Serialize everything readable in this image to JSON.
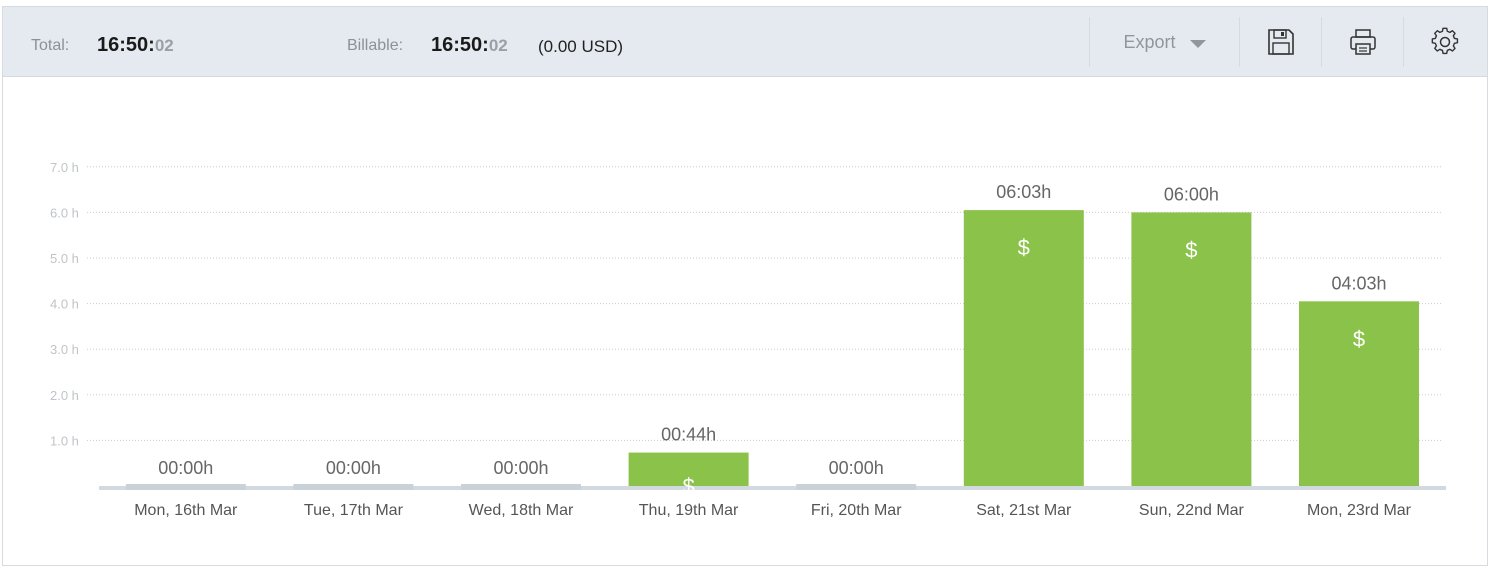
{
  "summary": {
    "total_label": "Total:",
    "total_hm": "16:50:",
    "total_sec": "02",
    "billable_label": "Billable:",
    "billable_hm": "16:50:",
    "billable_sec": "02",
    "billable_amount": "(0.00 USD)"
  },
  "toolbar": {
    "export_label": "Export",
    "icons": [
      "save-icon",
      "print-icon",
      "settings-icon"
    ]
  },
  "colors": {
    "bar_billable": "#8bc34a",
    "bar_zero": "#c9d2d8",
    "baseline": "#d3dadf",
    "grid": "#c8cdd2"
  },
  "chart_data": {
    "type": "bar",
    "categories": [
      "Mon, 16th Mar",
      "Tue, 17th Mar",
      "Wed, 18th Mar",
      "Thu, 19th Mar",
      "Fri, 20th Mar",
      "Sat, 21st Mar",
      "Sun, 22nd Mar",
      "Mon, 23rd Mar"
    ],
    "values": [
      0,
      0,
      0,
      0.733,
      0,
      6.05,
      6.0,
      4.05
    ],
    "value_labels": [
      "00:00h",
      "00:00h",
      "00:00h",
      "00:44h",
      "00:00h",
      "06:03h",
      "06:00h",
      "04:03h"
    ],
    "billable": [
      false,
      false,
      false,
      true,
      false,
      true,
      true,
      true
    ],
    "billable_marker": "$",
    "yticks": [
      "1.0 h",
      "2.0 h",
      "3.0 h",
      "4.0 h",
      "5.0 h",
      "6.0 h",
      "7.0 h"
    ],
    "ylim": [
      0,
      7
    ],
    "grid": true
  }
}
